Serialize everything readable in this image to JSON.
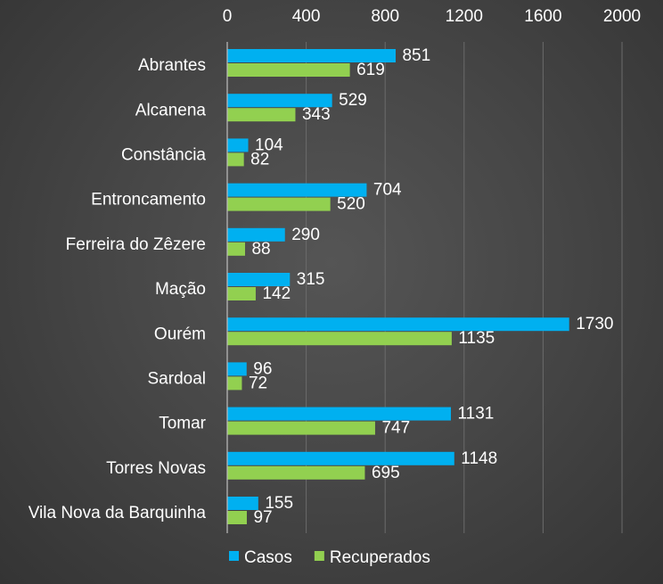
{
  "chart_data": {
    "type": "bar",
    "orientation": "horizontal",
    "categories": [
      "Abrantes",
      "Alcanena",
      "Constância",
      "Entroncamento",
      "Ferreira do Zêzere",
      "Mação",
      "Ourém",
      "Sardoal",
      "Tomar",
      "Torres Novas",
      "Vila Nova da Barquinha"
    ],
    "series": [
      {
        "name": "Casos",
        "color": "#00b0f0",
        "values": [
          851,
          529,
          104,
          704,
          290,
          315,
          1730,
          96,
          1131,
          1148,
          155
        ]
      },
      {
        "name": "Recuperados",
        "color": "#92d050",
        "values": [
          619,
          343,
          82,
          520,
          88,
          142,
          1135,
          72,
          747,
          695,
          97
        ]
      }
    ],
    "xlim": [
      0,
      2000
    ],
    "x_ticks": [
      0,
      400,
      800,
      1200,
      1600,
      2000
    ],
    "x_axis_position": "top",
    "grid": true,
    "legend_position": "bottom",
    "title": "",
    "xlabel": "",
    "ylabel": ""
  }
}
